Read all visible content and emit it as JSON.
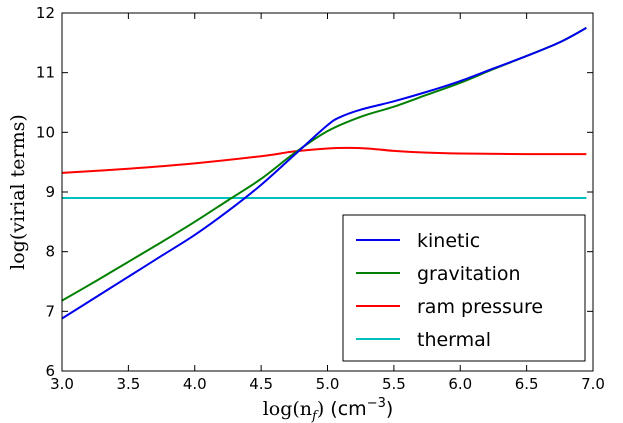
{
  "chart_data": {
    "type": "line",
    "xlabel": {
      "main": "log(n",
      "sub": "f",
      "close": ")",
      "unit_pre": " (cm",
      "unit_sup": "−3",
      "unit_post": ")"
    },
    "ylabel": "log(virial terms)",
    "xlim": [
      3.0,
      7.0
    ],
    "ylim": [
      6,
      12
    ],
    "x_ticks": [
      "3.0",
      "3.5",
      "4.0",
      "4.5",
      "5.0",
      "5.5",
      "6.0",
      "6.5",
      "7.0"
    ],
    "y_ticks": [
      "6",
      "7",
      "8",
      "9",
      "10",
      "11",
      "12"
    ],
    "grid": false,
    "legend_position": "lower-right",
    "series": [
      {
        "name": "kinetic",
        "color": "#0000ee",
        "x": [
          3.0,
          3.25,
          3.5,
          3.75,
          4.0,
          4.25,
          4.5,
          4.75,
          5.0,
          5.1,
          5.25,
          5.5,
          5.75,
          6.0,
          6.25,
          6.5,
          6.75,
          6.95
        ],
        "y": [
          6.88,
          7.23,
          7.58,
          7.93,
          8.28,
          8.68,
          9.12,
          9.62,
          10.12,
          10.26,
          10.38,
          10.52,
          10.68,
          10.86,
          11.07,
          11.28,
          11.51,
          11.75
        ]
      },
      {
        "name": "gravitation",
        "color": "#008000",
        "x": [
          3.0,
          3.25,
          3.5,
          3.75,
          4.0,
          4.25,
          4.5,
          4.75,
          5.0,
          5.25,
          5.5,
          5.75,
          6.0,
          6.25,
          6.5,
          6.75,
          6.95
        ],
        "y": [
          7.18,
          7.5,
          7.83,
          8.16,
          8.5,
          8.86,
          9.22,
          9.65,
          10.02,
          10.26,
          10.43,
          10.63,
          10.83,
          11.06,
          11.28,
          11.51,
          11.75
        ]
      },
      {
        "name": "ram pressure",
        "color": "#ff0000",
        "x": [
          3.0,
          3.5,
          4.0,
          4.5,
          4.75,
          5.0,
          5.15,
          5.3,
          5.5,
          5.75,
          6.0,
          6.5,
          6.95
        ],
        "y": [
          9.32,
          9.39,
          9.48,
          9.6,
          9.68,
          9.73,
          9.74,
          9.73,
          9.69,
          9.66,
          9.645,
          9.635,
          9.635
        ]
      },
      {
        "name": "thermal",
        "color": "#00bfbf",
        "x": [
          3.0,
          6.95
        ],
        "y": [
          8.9,
          8.9
        ]
      }
    ]
  }
}
